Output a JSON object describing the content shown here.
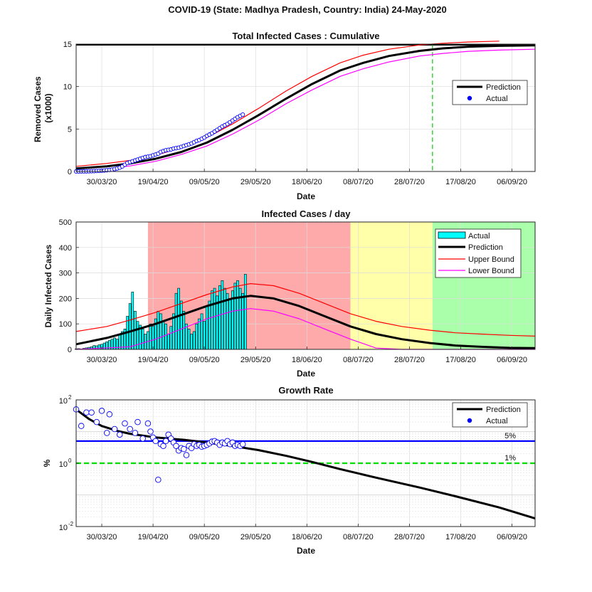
{
  "figure_title": "COVID-19 (State: Madhya Pradesh, Country: India) 24-May-2020",
  "colors": {
    "prediction": "#000000",
    "actual_marker": "#0000ff",
    "upper_bound": "#ff0000",
    "lower_bound": "#ff00ff",
    "bar_fill": "#00ffff",
    "zone_red": "#ffaaaa",
    "zone_yellow": "#ffffaa",
    "zone_green": "#aaffaa",
    "peak_marker": "#00cc00",
    "threshold_5": "#0000ff",
    "threshold_1": "#00dd00"
  },
  "chart_data": [
    {
      "type": "line",
      "title": "Total Infected Cases : Cumulative",
      "xlabel": "Date",
      "ylabel": "Removed Cases\n(x1000)",
      "x_ticks": [
        "30/03/20",
        "19/04/20",
        "09/05/20",
        "29/05/20",
        "18/06/20",
        "08/07/20",
        "28/07/20",
        "17/08/20",
        "06/09/20"
      ],
      "x_range": [
        "2020-03-20",
        "2020-09-15"
      ],
      "ylim": [
        0,
        15
      ],
      "y_ticks": [
        0,
        5,
        10,
        15
      ],
      "grid": true,
      "legend_position": "right",
      "reference_lines": [
        {
          "type": "horizontal",
          "y": 14.9,
          "color": "#000000"
        },
        {
          "type": "vertical",
          "x": "2020-08-06",
          "style": "dashed",
          "color": "#00cc00"
        }
      ],
      "series": [
        {
          "name": "Prediction",
          "style": "line",
          "x": [
            "2020-03-20",
            "2020-04-01",
            "2020-04-10",
            "2020-04-20",
            "2020-04-30",
            "2020-05-10",
            "2020-05-20",
            "2020-05-30",
            "2020-06-10",
            "2020-06-20",
            "2020-07-01",
            "2020-07-10",
            "2020-07-20",
            "2020-08-01",
            "2020-08-10",
            "2020-08-20",
            "2020-09-01",
            "2020-09-15"
          ],
          "y": [
            0.35,
            0.6,
            0.95,
            1.5,
            2.3,
            3.4,
            4.9,
            6.6,
            8.6,
            10.3,
            11.9,
            12.8,
            13.6,
            14.2,
            14.5,
            14.7,
            14.8,
            14.85
          ]
        },
        {
          "name": "Upper Bound",
          "style": "line",
          "x": [
            "2020-03-20",
            "2020-04-01",
            "2020-04-10",
            "2020-04-20",
            "2020-04-30",
            "2020-05-10",
            "2020-05-20",
            "2020-05-30",
            "2020-06-10",
            "2020-06-20",
            "2020-07-01",
            "2020-07-10",
            "2020-07-20",
            "2020-08-01",
            "2020-08-10",
            "2020-08-20",
            "2020-09-01"
          ],
          "y": [
            0.6,
            0.95,
            1.3,
            1.9,
            2.8,
            4.0,
            5.6,
            7.4,
            9.5,
            11.2,
            12.8,
            13.7,
            14.4,
            14.9,
            15.1,
            15.25,
            15.35
          ]
        },
        {
          "name": "Lower Bound",
          "style": "line",
          "x": [
            "2020-03-20",
            "2020-04-01",
            "2020-04-10",
            "2020-04-20",
            "2020-04-30",
            "2020-05-10",
            "2020-05-20",
            "2020-05-30",
            "2020-06-10",
            "2020-06-20",
            "2020-07-01",
            "2020-07-10",
            "2020-07-20",
            "2020-08-01",
            "2020-08-10",
            "2020-08-20",
            "2020-09-01",
            "2020-09-15"
          ],
          "y": [
            0.1,
            0.3,
            0.65,
            1.2,
            2.0,
            3.0,
            4.4,
            6.0,
            8.0,
            9.6,
            11.2,
            12.1,
            12.9,
            13.6,
            13.9,
            14.15,
            14.3,
            14.4
          ]
        },
        {
          "name": "Actual",
          "style": "markers",
          "x": [
            "2020-03-20",
            "2020-03-21",
            "2020-03-22",
            "2020-03-23",
            "2020-03-24",
            "2020-03-25",
            "2020-03-26",
            "2020-03-27",
            "2020-03-28",
            "2020-03-29",
            "2020-03-30",
            "2020-03-31",
            "2020-04-01",
            "2020-04-02",
            "2020-04-03",
            "2020-04-04",
            "2020-04-05",
            "2020-04-06",
            "2020-04-07",
            "2020-04-08",
            "2020-04-09",
            "2020-04-10",
            "2020-04-11",
            "2020-04-12",
            "2020-04-13",
            "2020-04-14",
            "2020-04-15",
            "2020-04-16",
            "2020-04-17",
            "2020-04-18",
            "2020-04-19",
            "2020-04-20",
            "2020-04-21",
            "2020-04-22",
            "2020-04-23",
            "2020-04-24",
            "2020-04-25",
            "2020-04-26",
            "2020-04-27",
            "2020-04-28",
            "2020-04-29",
            "2020-04-30",
            "2020-05-01",
            "2020-05-02",
            "2020-05-03",
            "2020-05-04",
            "2020-05-05",
            "2020-05-06",
            "2020-05-07",
            "2020-05-08",
            "2020-05-09",
            "2020-05-10",
            "2020-05-11",
            "2020-05-12",
            "2020-05-13",
            "2020-05-14",
            "2020-05-15",
            "2020-05-16",
            "2020-05-17",
            "2020-05-18",
            "2020-05-19",
            "2020-05-20",
            "2020-05-21",
            "2020-05-22",
            "2020-05-23",
            "2020-05-24"
          ],
          "y": [
            0.004,
            0.006,
            0.008,
            0.012,
            0.017,
            0.025,
            0.035,
            0.048,
            0.062,
            0.08,
            0.1,
            0.12,
            0.15,
            0.18,
            0.22,
            0.28,
            0.36,
            0.45,
            0.6,
            0.8,
            1.0,
            1.1,
            1.2,
            1.3,
            1.4,
            1.5,
            1.6,
            1.7,
            1.75,
            1.8,
            1.9,
            2.0,
            2.1,
            2.3,
            2.4,
            2.5,
            2.55,
            2.6,
            2.7,
            2.75,
            2.8,
            2.9,
            3.0,
            3.1,
            3.2,
            3.3,
            3.45,
            3.6,
            3.7,
            3.85,
            4.0,
            4.2,
            4.35,
            4.5,
            4.7,
            4.9,
            5.1,
            5.3,
            5.45,
            5.6,
            5.8,
            6.0,
            6.2,
            6.4,
            6.55,
            6.7
          ]
        }
      ]
    },
    {
      "type": "bar",
      "title": "Infected Cases / day",
      "xlabel": "Date",
      "ylabel": "Daily Infected Cases",
      "x_ticks": [
        "30/03/20",
        "19/04/20",
        "09/05/20",
        "29/05/20",
        "18/06/20",
        "08/07/20",
        "28/07/20",
        "17/08/20",
        "06/09/20"
      ],
      "x_range": [
        "2020-03-20",
        "2020-09-15"
      ],
      "ylim": [
        0,
        500
      ],
      "y_ticks": [
        0,
        100,
        200,
        300,
        400,
        500
      ],
      "grid": true,
      "legend_position": "top-right",
      "zones": [
        {
          "from": "2020-04-17",
          "to": "2020-07-05",
          "color": "#ffaaaa"
        },
        {
          "from": "2020-07-05",
          "to": "2020-08-06",
          "color": "#ffffaa"
        },
        {
          "from": "2020-08-06",
          "to": "2020-09-15",
          "color": "#aaffaa"
        }
      ],
      "bars": {
        "name": "Actual",
        "start_date": "2020-03-20",
        "values": [
          2,
          3,
          2,
          4,
          6,
          8,
          10,
          15,
          14,
          18,
          20,
          25,
          30,
          35,
          40,
          45,
          40,
          60,
          70,
          80,
          130,
          180,
          225,
          150,
          110,
          95,
          80,
          60,
          70,
          100,
          90,
          120,
          150,
          140,
          110,
          100,
          60,
          90,
          140,
          220,
          240,
          190,
          150,
          100,
          80,
          60,
          70,
          100,
          120,
          140,
          110,
          170,
          190,
          230,
          240,
          210,
          250,
          270,
          240,
          220,
          200,
          230,
          260,
          270,
          240,
          220,
          295
        ]
      },
      "series": [
        {
          "name": "Prediction",
          "style": "line",
          "x": [
            "2020-03-20",
            "2020-04-01",
            "2020-04-10",
            "2020-04-20",
            "2020-04-30",
            "2020-05-10",
            "2020-05-20",
            "2020-05-27",
            "2020-06-05",
            "2020-06-15",
            "2020-06-25",
            "2020-07-05",
            "2020-07-15",
            "2020-07-25",
            "2020-08-05",
            "2020-08-15",
            "2020-08-25",
            "2020-09-05",
            "2020-09-15"
          ],
          "y": [
            20,
            45,
            70,
            100,
            135,
            170,
            200,
            210,
            200,
            170,
            130,
            90,
            60,
            40,
            25,
            15,
            10,
            6,
            5
          ]
        },
        {
          "name": "Upper Bound",
          "style": "line",
          "x": [
            "2020-03-20",
            "2020-04-01",
            "2020-04-10",
            "2020-04-20",
            "2020-04-30",
            "2020-05-10",
            "2020-05-20",
            "2020-05-27",
            "2020-06-05",
            "2020-06-15",
            "2020-06-25",
            "2020-07-05",
            "2020-07-15",
            "2020-07-25",
            "2020-08-05",
            "2020-08-15",
            "2020-08-25",
            "2020-09-05",
            "2020-09-15"
          ],
          "y": [
            70,
            90,
            115,
            145,
            180,
            215,
            245,
            258,
            250,
            220,
            180,
            140,
            110,
            90,
            75,
            65,
            60,
            55,
            52
          ]
        },
        {
          "name": "Lower Bound",
          "style": "line",
          "x": [
            "2020-03-20",
            "2020-04-10",
            "2020-04-20",
            "2020-04-30",
            "2020-05-10",
            "2020-05-20",
            "2020-05-27",
            "2020-06-05",
            "2020-06-15",
            "2020-06-25",
            "2020-07-05",
            "2020-07-15",
            "2020-07-25",
            "2020-08-05",
            "2020-09-15"
          ],
          "y": [
            0,
            10,
            40,
            80,
            120,
            150,
            160,
            150,
            120,
            80,
            40,
            5,
            0,
            0,
            0
          ]
        }
      ]
    },
    {
      "type": "scatter",
      "title": "Growth Rate",
      "xlabel": "Date",
      "ylabel": "%",
      "yscale": "log",
      "x_ticks": [
        "30/03/20",
        "19/04/20",
        "09/05/20",
        "29/05/20",
        "18/06/20",
        "08/07/20",
        "28/07/20",
        "17/08/20",
        "06/09/20"
      ],
      "x_range": [
        "2020-03-20",
        "2020-09-15"
      ],
      "ylim": [
        0.01,
        100
      ],
      "y_ticks": [
        0.01,
        1,
        100
      ],
      "y_tick_labels": [
        {
          "base": "10",
          "exp": "-2"
        },
        {
          "base": "10",
          "exp": "0"
        },
        {
          "base": "10",
          "exp": "2"
        }
      ],
      "grid": true,
      "legend_position": "top-right",
      "reference_lines": [
        {
          "label": "5%",
          "y": 5,
          "color": "#0000ff",
          "style": "solid"
        },
        {
          "label": "1%",
          "y": 1,
          "color": "#00dd00",
          "style": "dashed"
        }
      ],
      "series": [
        {
          "name": "Prediction",
          "style": "line",
          "x": [
            "2020-03-20",
            "2020-03-25",
            "2020-03-30",
            "2020-04-05",
            "2020-04-10",
            "2020-04-20",
            "2020-05-01",
            "2020-05-10",
            "2020-05-20",
            "2020-05-30",
            "2020-06-10",
            "2020-06-20",
            "2020-07-01",
            "2020-07-15",
            "2020-08-01",
            "2020-08-15",
            "2020-09-01",
            "2020-09-15"
          ],
          "y": [
            50,
            25,
            15,
            10.5,
            8.5,
            6.5,
            5.5,
            4.5,
            3.5,
            2.6,
            1.7,
            1.1,
            0.65,
            0.35,
            0.17,
            0.09,
            0.04,
            0.018
          ]
        },
        {
          "name": "Actual",
          "style": "markers",
          "x": [
            "2020-03-20",
            "2020-03-22",
            "2020-03-24",
            "2020-03-26",
            "2020-03-28",
            "2020-03-30",
            "2020-04-01",
            "2020-04-02",
            "2020-04-04",
            "2020-04-06",
            "2020-04-08",
            "2020-04-10",
            "2020-04-12",
            "2020-04-13",
            "2020-04-15",
            "2020-04-17",
            "2020-04-18",
            "2020-04-19",
            "2020-04-20",
            "2020-04-21",
            "2020-04-22",
            "2020-04-23",
            "2020-04-24",
            "2020-04-25",
            "2020-04-26",
            "2020-04-27",
            "2020-04-28",
            "2020-04-29",
            "2020-04-30",
            "2020-05-01",
            "2020-05-02",
            "2020-05-03",
            "2020-05-04",
            "2020-05-05",
            "2020-05-06",
            "2020-05-07",
            "2020-05-08",
            "2020-05-09",
            "2020-05-10",
            "2020-05-11",
            "2020-05-12",
            "2020-05-13",
            "2020-05-14",
            "2020-05-15",
            "2020-05-16",
            "2020-05-17",
            "2020-05-18",
            "2020-05-19",
            "2020-05-20",
            "2020-05-21",
            "2020-05-22",
            "2020-05-23",
            "2020-05-24"
          ],
          "y": [
            50,
            15,
            40,
            40,
            20,
            45,
            9,
            35,
            12,
            8,
            18,
            12,
            9,
            20,
            6,
            18,
            10,
            6.5,
            5,
            0.3,
            4,
            3.5,
            5,
            8,
            6,
            4.5,
            3.5,
            2.5,
            3,
            2.8,
            1.8,
            3.5,
            3,
            4,
            3.5,
            3.8,
            3.3,
            3.5,
            3.8,
            4.2,
            4.8,
            5,
            4.5,
            3.8,
            4.5,
            4.2,
            5,
            4,
            4.5,
            3.5,
            3.8,
            3.5,
            4
          ]
        }
      ]
    }
  ]
}
